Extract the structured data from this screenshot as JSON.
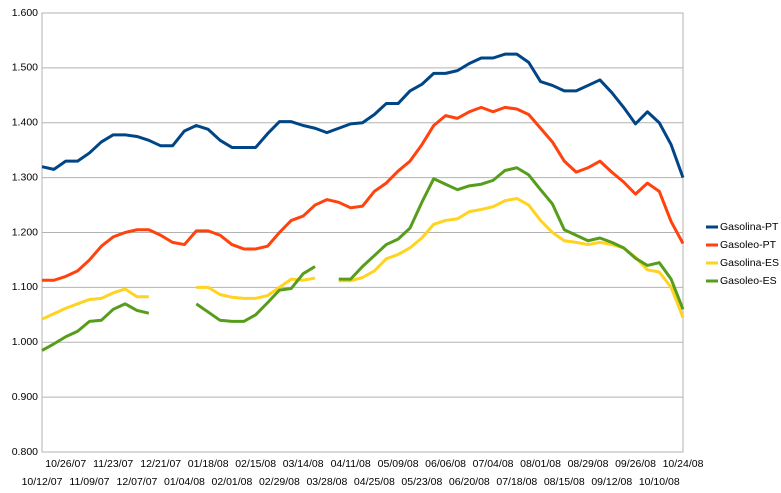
{
  "chart_data": {
    "type": "line",
    "categories": [
      "10/12/07",
      null,
      "10/26/07",
      null,
      "11/09/07",
      null,
      "11/23/07",
      null,
      "12/07/07",
      null,
      "12/21/07",
      null,
      "01/04/08",
      null,
      "01/18/08",
      null,
      "02/01/08",
      null,
      "02/15/08",
      null,
      "02/29/08",
      null,
      "03/14/08",
      null,
      "03/28/08",
      null,
      "04/11/08",
      null,
      "04/25/08",
      null,
      "05/09/08",
      null,
      "05/23/08",
      null,
      "06/06/08",
      null,
      "06/20/08",
      null,
      "07/04/08",
      null,
      "07/18/08",
      null,
      "08/01/08",
      null,
      "08/15/08",
      null,
      "08/29/08",
      null,
      "09/12/08",
      null,
      "09/26/08",
      null,
      "10/10/08",
      null,
      "10/24/08"
    ],
    "series": [
      {
        "name": "Gasolina-PT",
        "color": "#004586",
        "values": [
          1.32,
          1.315,
          1.33,
          1.33,
          1.345,
          1.365,
          1.378,
          1.378,
          1.375,
          1.368,
          1.358,
          1.358,
          1.385,
          1.395,
          1.388,
          1.368,
          1.355,
          1.355,
          1.355,
          1.38,
          1.402,
          1.402,
          1.395,
          1.39,
          1.382,
          1.39,
          1.398,
          1.4,
          1.415,
          1.435,
          1.435,
          1.458,
          1.47,
          1.49,
          1.49,
          1.495,
          1.508,
          1.518,
          1.518,
          1.525,
          1.525,
          1.51,
          1.475,
          1.468,
          1.458,
          1.458,
          1.468,
          1.478,
          1.455,
          1.428,
          1.398,
          1.42,
          1.4,
          1.36,
          1.3
        ]
      },
      {
        "name": "Gasoleo-PT",
        "color": "#ff420e",
        "values": [
          1.113,
          1.113,
          1.12,
          1.13,
          1.15,
          1.175,
          1.192,
          1.2,
          1.205,
          1.205,
          1.195,
          1.182,
          1.178,
          1.203,
          1.203,
          1.195,
          1.178,
          1.17,
          1.17,
          1.175,
          1.2,
          1.222,
          1.23,
          1.25,
          1.26,
          1.255,
          1.245,
          1.248,
          1.275,
          1.29,
          1.312,
          1.33,
          1.36,
          1.395,
          1.413,
          1.408,
          1.42,
          1.428,
          1.42,
          1.428,
          1.425,
          1.415,
          1.39,
          1.365,
          1.33,
          1.31,
          1.318,
          1.33,
          1.31,
          1.292,
          1.27,
          1.29,
          1.275,
          1.22,
          1.18
        ]
      },
      {
        "name": "Gasolina-ES",
        "color": "#ffd320",
        "values": [
          1.042,
          1.052,
          1.062,
          1.07,
          1.078,
          1.08,
          1.09,
          1.097,
          1.083,
          1.083,
          null,
          null,
          null,
          1.1,
          1.1,
          1.087,
          1.082,
          1.08,
          1.08,
          1.085,
          1.1,
          1.115,
          1.113,
          1.117,
          null,
          1.112,
          1.112,
          1.118,
          1.13,
          1.152,
          1.16,
          1.172,
          1.19,
          1.215,
          1.222,
          1.225,
          1.238,
          1.242,
          1.247,
          1.258,
          1.262,
          1.25,
          1.222,
          1.2,
          1.185,
          1.182,
          1.178,
          1.182,
          1.178,
          1.172,
          1.155,
          1.132,
          1.128,
          1.1,
          1.045
        ]
      },
      {
        "name": "Gasoleo-ES",
        "color": "#579d1c",
        "values": [
          0.985,
          0.997,
          1.01,
          1.02,
          1.038,
          1.04,
          1.06,
          1.07,
          1.058,
          1.053,
          null,
          null,
          null,
          1.07,
          1.055,
          1.04,
          1.038,
          1.038,
          1.05,
          1.072,
          1.095,
          1.098,
          1.125,
          1.138,
          null,
          1.115,
          1.115,
          1.138,
          1.158,
          1.178,
          1.188,
          1.208,
          1.255,
          1.298,
          1.288,
          1.278,
          1.285,
          1.288,
          1.295,
          1.313,
          1.318,
          1.305,
          1.278,
          1.252,
          1.205,
          1.195,
          1.185,
          1.19,
          1.182,
          1.172,
          1.153,
          1.14,
          1.145,
          1.115,
          1.06
        ]
      }
    ],
    "ylim": [
      0.8,
      1.6
    ],
    "yticks": [
      {
        "value": 0.8,
        "label": "0.800"
      },
      {
        "value": 0.9,
        "label": "0.900"
      },
      {
        "value": 1.0,
        "label": "1.000"
      },
      {
        "value": 1.1,
        "label": "1.100"
      },
      {
        "value": 1.2,
        "label": "1.200"
      },
      {
        "value": 1.3,
        "label": "1.300"
      },
      {
        "value": 1.4,
        "label": "1.400"
      },
      {
        "value": 1.5,
        "label": "1.500"
      },
      {
        "value": 1.6,
        "label": "1.600"
      }
    ],
    "grid": true,
    "legend": "right"
  }
}
